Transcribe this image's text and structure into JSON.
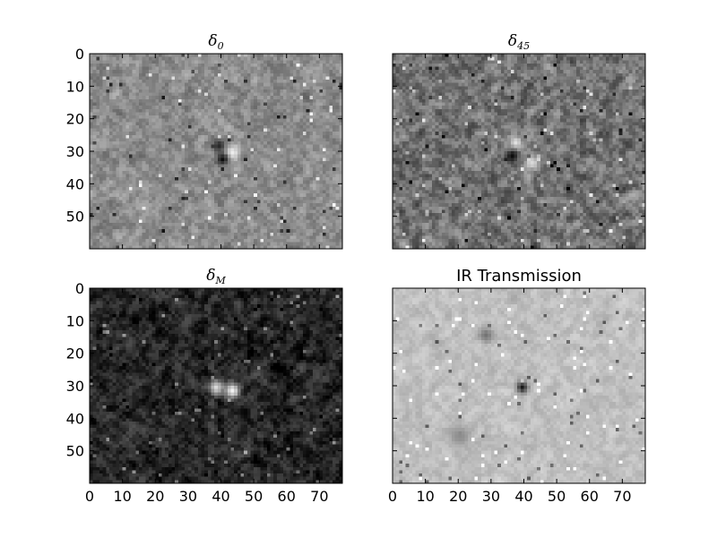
{
  "chart_data": [
    {
      "type": "heatmap",
      "title": "δ",
      "title_subscript": "0",
      "colormap": "gray",
      "background_shade": 0.55,
      "noise": 0.22,
      "features": [
        {
          "x": 39,
          "y": 28,
          "shade": 0.15,
          "spread": 1.5
        },
        {
          "x": 43,
          "y": 30,
          "shade": 0.95,
          "spread": 1.6
        },
        {
          "x": 40,
          "y": 32,
          "shade": 0.05,
          "spread": 1.3
        }
      ],
      "x_ticks": [
        "0",
        "10",
        "20",
        "30",
        "40",
        "50",
        "60",
        "70"
      ],
      "y_ticks": [
        "0",
        "10",
        "20",
        "30",
        "40",
        "50"
      ],
      "xlim": [
        0,
        77
      ],
      "ylim": [
        0,
        60
      ],
      "show_x_tick_labels": false,
      "show_y_tick_labels": true
    },
    {
      "type": "heatmap",
      "title": "δ",
      "title_subscript": "45",
      "colormap": "gray",
      "background_shade": 0.45,
      "noise": 0.3,
      "features": [
        {
          "x": 37,
          "y": 27,
          "shade": 0.9,
          "spread": 1.4
        },
        {
          "x": 36,
          "y": 31,
          "shade": 0.05,
          "spread": 1.5
        },
        {
          "x": 42,
          "y": 33,
          "shade": 0.85,
          "spread": 1.6
        }
      ],
      "x_ticks": [
        "0",
        "10",
        "20",
        "30",
        "40",
        "50",
        "60",
        "70"
      ],
      "y_ticks": [
        "0",
        "10",
        "20",
        "30",
        "40",
        "50"
      ],
      "xlim": [
        0,
        77
      ],
      "ylim": [
        0,
        60
      ],
      "show_x_tick_labels": false,
      "show_y_tick_labels": false
    },
    {
      "type": "heatmap",
      "title": "δ",
      "title_subscript": "M",
      "colormap": "gray",
      "background_shade": 0.15,
      "noise": 0.25,
      "features": [
        {
          "x": 38,
          "y": 30,
          "shade": 0.85,
          "spread": 1.6
        },
        {
          "x": 43,
          "y": 31,
          "shade": 0.95,
          "spread": 1.7
        }
      ],
      "x_ticks": [
        "0",
        "10",
        "20",
        "30",
        "40",
        "50",
        "60",
        "70"
      ],
      "y_ticks": [
        "0",
        "10",
        "20",
        "30",
        "40",
        "50"
      ],
      "xlim": [
        0,
        77
      ],
      "ylim": [
        0,
        60
      ],
      "show_x_tick_labels": true,
      "show_y_tick_labels": true
    },
    {
      "type": "heatmap",
      "title": "IR Transmission",
      "title_subscript": "",
      "colormap": "gray",
      "background_shade": 0.75,
      "noise": 0.12,
      "features": [
        {
          "x": 39,
          "y": 30,
          "shade": 0.1,
          "spread": 1.2
        },
        {
          "x": 28,
          "y": 14,
          "shade": 0.45,
          "spread": 1.5
        },
        {
          "x": 20,
          "y": 45,
          "shade": 0.55,
          "spread": 2.5
        }
      ],
      "x_ticks": [
        "0",
        "10",
        "20",
        "30",
        "40",
        "50",
        "60",
        "70"
      ],
      "y_ticks": [
        "0",
        "10",
        "20",
        "30",
        "40",
        "50"
      ],
      "xlim": [
        0,
        77
      ],
      "ylim": [
        0,
        60
      ],
      "show_x_tick_labels": true,
      "show_y_tick_labels": false
    }
  ]
}
